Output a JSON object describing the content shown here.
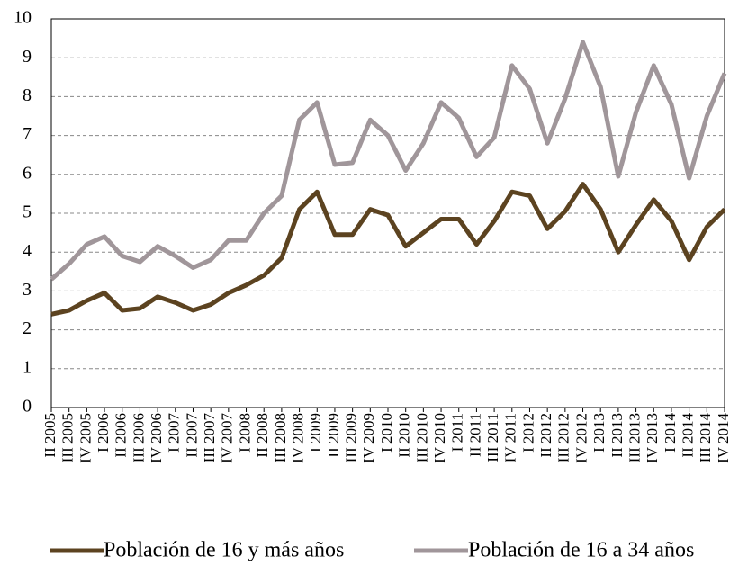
{
  "chart_data": {
    "type": "line",
    "categories": [
      "II 2005",
      "III 2005",
      "IV 2005",
      "I 2006",
      "II 2006",
      "III 2006",
      "IV 2006",
      "I 2007",
      "II 2007",
      "III 2007",
      "IV 2007",
      "I 2008",
      "II 2008",
      "III 2008",
      "IV 2008",
      "I 2009",
      "II 2009",
      "III 2009",
      "IV 2009",
      "I 2010",
      "II 2010",
      "III 2010",
      "IV 2010",
      "I 2011",
      "II 2011",
      "III 2011",
      "IV 2011",
      "I 2012",
      "II 2012",
      "III 2012",
      "IV 2012",
      "I 2013",
      "II 2013",
      "III 2013",
      "IV 2013",
      "I 2014",
      "II 2014",
      "III 2014",
      "IV 2014"
    ],
    "series": [
      {
        "name": "Población de 16 y más años",
        "color": "#5c4320",
        "values": [
          2.4,
          2.5,
          2.75,
          2.95,
          2.5,
          2.55,
          2.85,
          2.7,
          2.5,
          2.65,
          2.95,
          3.15,
          3.4,
          3.85,
          5.1,
          5.55,
          4.45,
          4.45,
          5.1,
          4.95,
          4.15,
          4.5,
          4.85,
          4.85,
          4.2,
          4.8,
          5.55,
          5.45,
          4.6,
          5.05,
          5.75,
          5.1,
          4.0,
          4.7,
          5.35,
          4.8,
          3.8,
          4.65,
          5.1
        ]
      },
      {
        "name": "Población de 16 a 34 años",
        "color": "#a0969a",
        "values": [
          3.3,
          3.7,
          4.2,
          4.4,
          3.9,
          3.75,
          4.15,
          3.9,
          3.6,
          3.8,
          4.3,
          4.3,
          5.0,
          5.45,
          7.4,
          7.85,
          6.25,
          6.3,
          7.4,
          7.0,
          6.1,
          6.8,
          7.85,
          7.45,
          6.45,
          6.95,
          8.8,
          8.2,
          6.8,
          7.95,
          9.4,
          8.25,
          5.95,
          7.6,
          8.8,
          7.8,
          5.9,
          7.5,
          8.6
        ]
      }
    ],
    "ylim": [
      0,
      10
    ],
    "yticks": [
      0,
      1,
      2,
      3,
      4,
      5,
      6,
      7,
      8,
      9,
      10
    ],
    "grid": true,
    "legend": "bottom"
  }
}
